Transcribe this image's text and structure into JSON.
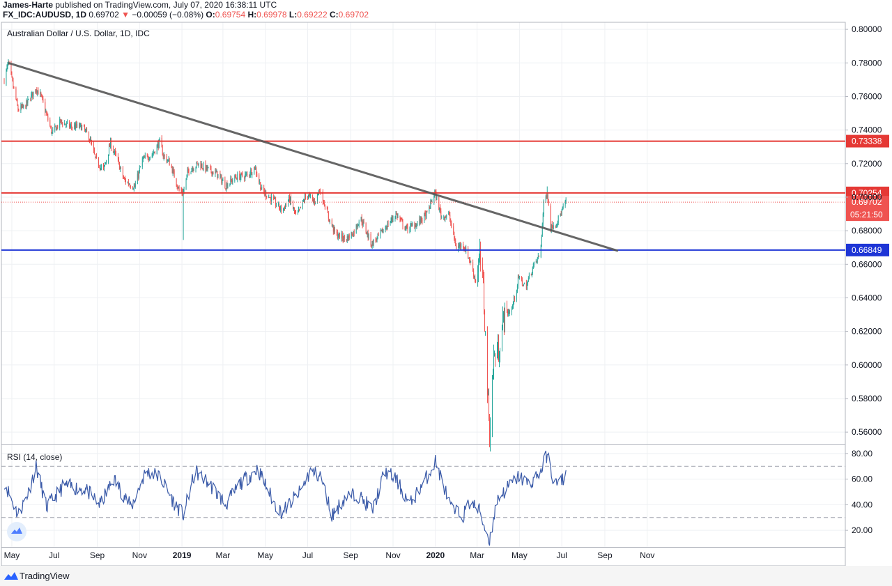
{
  "header": {
    "author": "James-Harte",
    "published": " published on TradingView.com, July 07, 2020 16:38:11 UTC",
    "symbol": "FX_IDC:AUDUSD, 1D",
    "last": "0.69702",
    "change_arrow": "▼",
    "change": "−0.00059 (−0.08%)",
    "o_label": "O:",
    "o_value": "0.69754",
    "h_label": "H:",
    "h_value": "0.69978",
    "l_label": "L:",
    "l_value": "0.69222",
    "c_label": "C:",
    "c_value": "0.69702"
  },
  "chart_data": [
    {
      "type": "candlestick",
      "title": "Australian Dollar / U.S. Dollar, 1D, IDC",
      "ylim": [
        0.553,
        0.8042
      ],
      "y_ticks": [
        "0.80000",
        "0.78000",
        "0.76000",
        "0.74000",
        "0.72000",
        "0.70000",
        "0.68000",
        "0.66000",
        "0.64000",
        "0.62000",
        "0.60000",
        "0.58000",
        "0.56000"
      ],
      "x_ticks": [
        "May",
        "Jul",
        "Sep",
        "Nov",
        "2019",
        "Mar",
        "May",
        "Jul",
        "Sep",
        "Nov",
        "2020",
        "Mar",
        "May",
        "Jul",
        "Sep",
        "Nov"
      ],
      "grid": true,
      "series_colors": {
        "up": "#26a69a",
        "down": "#ef5350"
      },
      "approx_daily_closes_anchors": [
        [
          "2018-04-20",
          0.77
        ],
        [
          "2018-04-26",
          0.78
        ],
        [
          "2018-05-10",
          0.752
        ],
        [
          "2018-05-20",
          0.754
        ],
        [
          "2018-06-05",
          0.765
        ],
        [
          "2018-06-12",
          0.76
        ],
        [
          "2018-06-28",
          0.738
        ],
        [
          "2018-07-10",
          0.745
        ],
        [
          "2018-07-25",
          0.742
        ],
        [
          "2018-08-10",
          0.742
        ],
        [
          "2018-08-20",
          0.736
        ],
        [
          "2018-08-30",
          0.722
        ],
        [
          "2018-09-10",
          0.716
        ],
        [
          "2018-09-20",
          0.732
        ],
        [
          "2018-09-30",
          0.722
        ],
        [
          "2018-10-10",
          0.71
        ],
        [
          "2018-10-25",
          0.706
        ],
        [
          "2018-11-05",
          0.722
        ],
        [
          "2018-11-20",
          0.726
        ],
        [
          "2018-11-30",
          0.733
        ],
        [
          "2018-12-05",
          0.725
        ],
        [
          "2018-12-15",
          0.72
        ],
        [
          "2018-12-28",
          0.704
        ],
        [
          "2019-01-03",
          0.703
        ],
        [
          "2019-01-10",
          0.716
        ],
        [
          "2019-01-25",
          0.72
        ],
        [
          "2019-02-05",
          0.717
        ],
        [
          "2019-02-20",
          0.714
        ],
        [
          "2019-03-05",
          0.707
        ],
        [
          "2019-03-20",
          0.712
        ],
        [
          "2019-04-05",
          0.713
        ],
        [
          "2019-04-16",
          0.718
        ],
        [
          "2019-04-26",
          0.704
        ],
        [
          "2019-05-10",
          0.699
        ],
        [
          "2019-05-25",
          0.692
        ],
        [
          "2019-06-05",
          0.699
        ],
        [
          "2019-06-15",
          0.688
        ],
        [
          "2019-06-30",
          0.702
        ],
        [
          "2019-07-10",
          0.697
        ],
        [
          "2019-07-19",
          0.705
        ],
        [
          "2019-07-31",
          0.688
        ],
        [
          "2019-08-10",
          0.678
        ],
        [
          "2019-08-25",
          0.675
        ],
        [
          "2019-09-05",
          0.679
        ],
        [
          "2019-09-15",
          0.688
        ],
        [
          "2019-10-01",
          0.672
        ],
        [
          "2019-10-10",
          0.676
        ],
        [
          "2019-10-25",
          0.684
        ],
        [
          "2019-11-05",
          0.69
        ],
        [
          "2019-11-20",
          0.681
        ],
        [
          "2019-12-05",
          0.684
        ],
        [
          "2019-12-20",
          0.69
        ],
        [
          "2019-12-31",
          0.703
        ],
        [
          "2020-01-10",
          0.688
        ],
        [
          "2020-01-20",
          0.69
        ],
        [
          "2020-01-31",
          0.67
        ],
        [
          "2020-02-10",
          0.672
        ],
        [
          "2020-02-20",
          0.662
        ],
        [
          "2020-02-28",
          0.65
        ],
        [
          "2020-03-05",
          0.664
        ],
        [
          "2020-03-10",
          0.646
        ],
        [
          "2020-03-19",
          0.558
        ],
        [
          "2020-03-25",
          0.605
        ],
        [
          "2020-04-01",
          0.608
        ],
        [
          "2020-04-09",
          0.63
        ],
        [
          "2020-04-20",
          0.633
        ],
        [
          "2020-04-30",
          0.652
        ],
        [
          "2020-05-10",
          0.646
        ],
        [
          "2020-05-20",
          0.658
        ],
        [
          "2020-05-31",
          0.666
        ],
        [
          "2020-06-05",
          0.696
        ],
        [
          "2020-06-10",
          0.703
        ],
        [
          "2020-06-15",
          0.682
        ],
        [
          "2020-06-25",
          0.686
        ],
        [
          "2020-07-07",
          0.697
        ]
      ],
      "annotations": [
        {
          "label": "0.73338",
          "type": "horizontal-line",
          "value": 0.73338,
          "color": "#e53935"
        },
        {
          "label": "0.70254",
          "type": "horizontal-line",
          "value": 0.70254,
          "color": "#e53935"
        },
        {
          "label": "0.66849",
          "type": "horizontal-line",
          "value": 0.66849,
          "color": "#1e35d6"
        },
        {
          "label": "0.69702",
          "type": "last-price",
          "value": 0.69702,
          "color": "#ef5350"
        },
        {
          "label": "05:21:50",
          "type": "countdown",
          "color": "#ef5350"
        },
        {
          "type": "trend-line",
          "from": [
            "2018-04-26",
            0.78
          ],
          "to": [
            "2020-09-20",
            0.668
          ],
          "color": "#555555"
        }
      ]
    },
    {
      "type": "line",
      "title": "RSI (14, close)",
      "ylim": [
        7,
        87
      ],
      "y_ticks": [
        "80.00",
        "60.00",
        "40.00",
        "20.00"
      ],
      "guide_levels": [
        70,
        30
      ],
      "color": "#3a5aa8",
      "approx_values_anchors": [
        [
          "2018-04-20",
          58
        ],
        [
          "2018-05-10",
          32
        ],
        [
          "2018-05-25",
          50
        ],
        [
          "2018-06-05",
          70
        ],
        [
          "2018-06-20",
          38
        ],
        [
          "2018-07-15",
          55
        ],
        [
          "2018-08-15",
          52
        ],
        [
          "2018-09-05",
          40
        ],
        [
          "2018-09-25",
          60
        ],
        [
          "2018-10-20",
          38
        ],
        [
          "2018-11-10",
          66
        ],
        [
          "2018-11-30",
          62
        ],
        [
          "2018-12-20",
          42
        ],
        [
          "2019-01-03",
          32
        ],
        [
          "2019-01-20",
          66
        ],
        [
          "2019-02-10",
          56
        ],
        [
          "2019-03-05",
          40
        ],
        [
          "2019-03-25",
          56
        ],
        [
          "2019-04-20",
          68
        ],
        [
          "2019-05-15",
          40
        ],
        [
          "2019-05-25",
          34
        ],
        [
          "2019-06-20",
          50
        ],
        [
          "2019-07-05",
          66
        ],
        [
          "2019-07-20",
          62
        ],
        [
          "2019-08-05",
          32
        ],
        [
          "2019-08-25",
          46
        ],
        [
          "2019-09-10",
          48
        ],
        [
          "2019-10-03",
          36
        ],
        [
          "2019-10-20",
          66
        ],
        [
          "2019-11-05",
          60
        ],
        [
          "2019-11-25",
          40
        ],
        [
          "2019-12-20",
          62
        ],
        [
          "2020-01-01",
          74
        ],
        [
          "2020-01-25",
          35
        ],
        [
          "2020-02-10",
          32
        ],
        [
          "2020-02-20",
          42
        ],
        [
          "2020-03-05",
          35
        ],
        [
          "2020-03-12",
          22
        ],
        [
          "2020-03-19",
          12
        ],
        [
          "2020-03-30",
          44
        ],
        [
          "2020-04-15",
          54
        ],
        [
          "2020-04-30",
          62
        ],
        [
          "2020-05-15",
          56
        ],
        [
          "2020-06-01",
          66
        ],
        [
          "2020-06-10",
          80
        ],
        [
          "2020-06-20",
          56
        ],
        [
          "2020-06-30",
          58
        ],
        [
          "2020-07-07",
          64
        ]
      ]
    }
  ],
  "footer": {
    "brand": "TradingView"
  }
}
